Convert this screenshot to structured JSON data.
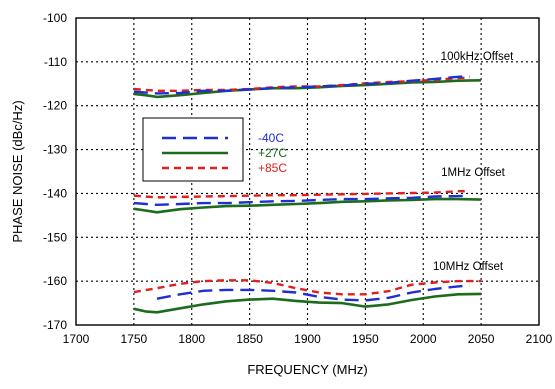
{
  "chart_data": {
    "type": "line",
    "title": "",
    "xlabel": "FREQUENCY (MHz)",
    "ylabel": "PHASE NOISE (dBc/Hz)",
    "xlim": [
      1700,
      2100
    ],
    "ylim": [
      -170,
      -100
    ],
    "xticks": [
      1700,
      1750,
      1800,
      1850,
      1900,
      1950,
      2000,
      2050,
      2100
    ],
    "yticks": [
      -100,
      -110,
      -120,
      -130,
      -140,
      -150,
      -160,
      -170
    ],
    "grid": "dotted",
    "legend": {
      "placement": "left-middle",
      "entries": [
        {
          "label": "-40C",
          "color": "#1f2fd0",
          "dash": "long-dash"
        },
        {
          "label": "+27C",
          "color": "#1d6b1d",
          "dash": "solid"
        },
        {
          "label": "+85C",
          "color": "#e0201e",
          "dash": "short-dash"
        }
      ]
    },
    "annotations": [
      "100kHz Offset",
      "1MHz Offset",
      "10MHz Offset"
    ],
    "groups": [
      {
        "name": "100kHz Offset",
        "series": [
          {
            "name": "-40C",
            "x": [
              1750,
              1770,
              1790,
              1810,
              1830,
              1850,
              1870,
              1890,
              1910,
              1930,
              1950,
              1970,
              1990,
              2010,
              2030,
              2040
            ],
            "values": [
              -116.8,
              -117.2,
              -117.1,
              -116.6,
              -116.6,
              -116.3,
              -116.0,
              -115.8,
              -115.6,
              -115.4,
              -115.0,
              -114.8,
              -114.3,
              -113.9,
              -113.4,
              -113.3
            ]
          },
          {
            "name": "+27C",
            "x": [
              1750,
              1760,
              1770,
              1790,
              1810,
              1830,
              1850,
              1870,
              1890,
              1910,
              1930,
              1950,
              1970,
              1990,
              2010,
              2030,
              2050
            ],
            "values": [
              -117.3,
              -117.6,
              -118.0,
              -117.6,
              -117.1,
              -116.6,
              -116.3,
              -116.0,
              -116.0,
              -115.8,
              -115.5,
              -115.3,
              -115.0,
              -114.7,
              -114.6,
              -114.3,
              -114.2
            ]
          },
          {
            "name": "+85C",
            "x": [
              1750,
              1770,
              1790,
              1810,
              1830,
              1850,
              1870,
              1890,
              1910,
              1930,
              1950,
              1970,
              1990,
              2010,
              2030,
              2040
            ],
            "values": [
              -116.2,
              -116.6,
              -116.6,
              -116.4,
              -116.4,
              -116.2,
              -115.8,
              -115.6,
              -115.6,
              -115.3,
              -114.9,
              -114.6,
              -114.4,
              -114.1,
              -113.7,
              -113.6
            ]
          }
        ]
      },
      {
        "name": "1MHz Offset",
        "series": [
          {
            "name": "-40C",
            "x": [
              1750,
              1770,
              1790,
              1810,
              1830,
              1850,
              1870,
              1890,
              1910,
              1930,
              1950,
              1970,
              1990,
              2010,
              2030,
              2040
            ],
            "values": [
              -142.2,
              -142.6,
              -142.4,
              -142.2,
              -142.2,
              -142.0,
              -141.8,
              -141.7,
              -141.5,
              -141.3,
              -141.3,
              -141.1,
              -141.0,
              -140.7,
              -140.6,
              -140.5
            ]
          },
          {
            "name": "+27C",
            "x": [
              1750,
              1760,
              1770,
              1790,
              1810,
              1830,
              1850,
              1870,
              1890,
              1910,
              1930,
              1950,
              1970,
              1990,
              2010,
              2030,
              2050
            ],
            "values": [
              -143.5,
              -143.9,
              -144.3,
              -143.6,
              -143.2,
              -142.9,
              -142.8,
              -142.6,
              -142.4,
              -142.2,
              -141.9,
              -141.8,
              -141.6,
              -141.5,
              -141.3,
              -141.3,
              -141.4
            ]
          },
          {
            "name": "+85C",
            "x": [
              1750,
              1770,
              1790,
              1810,
              1830,
              1850,
              1870,
              1890,
              1910,
              1930,
              1950,
              1970,
              1990,
              2010,
              2030,
              2040
            ],
            "values": [
              -140.5,
              -140.9,
              -140.8,
              -140.7,
              -140.6,
              -140.5,
              -140.4,
              -140.4,
              -140.3,
              -140.2,
              -140.1,
              -140.0,
              -139.9,
              -139.8,
              -139.5,
              -139.5
            ]
          }
        ]
      },
      {
        "name": "10MHz Offset",
        "series": [
          {
            "name": "-40C",
            "x": [
              1770,
              1790,
              1810,
              1830,
              1850,
              1870,
              1890,
              1910,
              1930,
              1950,
              1970,
              1990,
              2010,
              2030,
              2040
            ],
            "values": [
              -164.0,
              -163.0,
              -162.2,
              -162.0,
              -162.0,
              -162.2,
              -162.6,
              -163.6,
              -164.2,
              -164.4,
              -163.8,
              -162.6,
              -161.8,
              -161.2,
              -161.0
            ]
          },
          {
            "name": "+27C",
            "x": [
              1750,
              1760,
              1770,
              1790,
              1810,
              1830,
              1850,
              1870,
              1890,
              1910,
              1930,
              1950,
              1970,
              1990,
              2010,
              2030,
              2050
            ],
            "values": [
              -166.3,
              -166.9,
              -167.1,
              -166.2,
              -165.3,
              -164.6,
              -164.2,
              -164.0,
              -164.5,
              -164.9,
              -165.0,
              -165.8,
              -165.3,
              -164.3,
              -163.5,
              -163.0,
              -162.9
            ]
          },
          {
            "name": "+85C",
            "x": [
              1750,
              1770,
              1790,
              1810,
              1830,
              1850,
              1870,
              1890,
              1910,
              1930,
              1950,
              1970,
              1990,
              2010,
              2030,
              2050
            ],
            "values": [
              -162.5,
              -161.6,
              -160.6,
              -160.0,
              -159.8,
              -159.8,
              -160.4,
              -161.6,
              -162.6,
              -163.0,
              -163.0,
              -162.3,
              -160.8,
              -160.3,
              -160.0,
              -160.0
            ]
          }
        ]
      }
    ]
  }
}
